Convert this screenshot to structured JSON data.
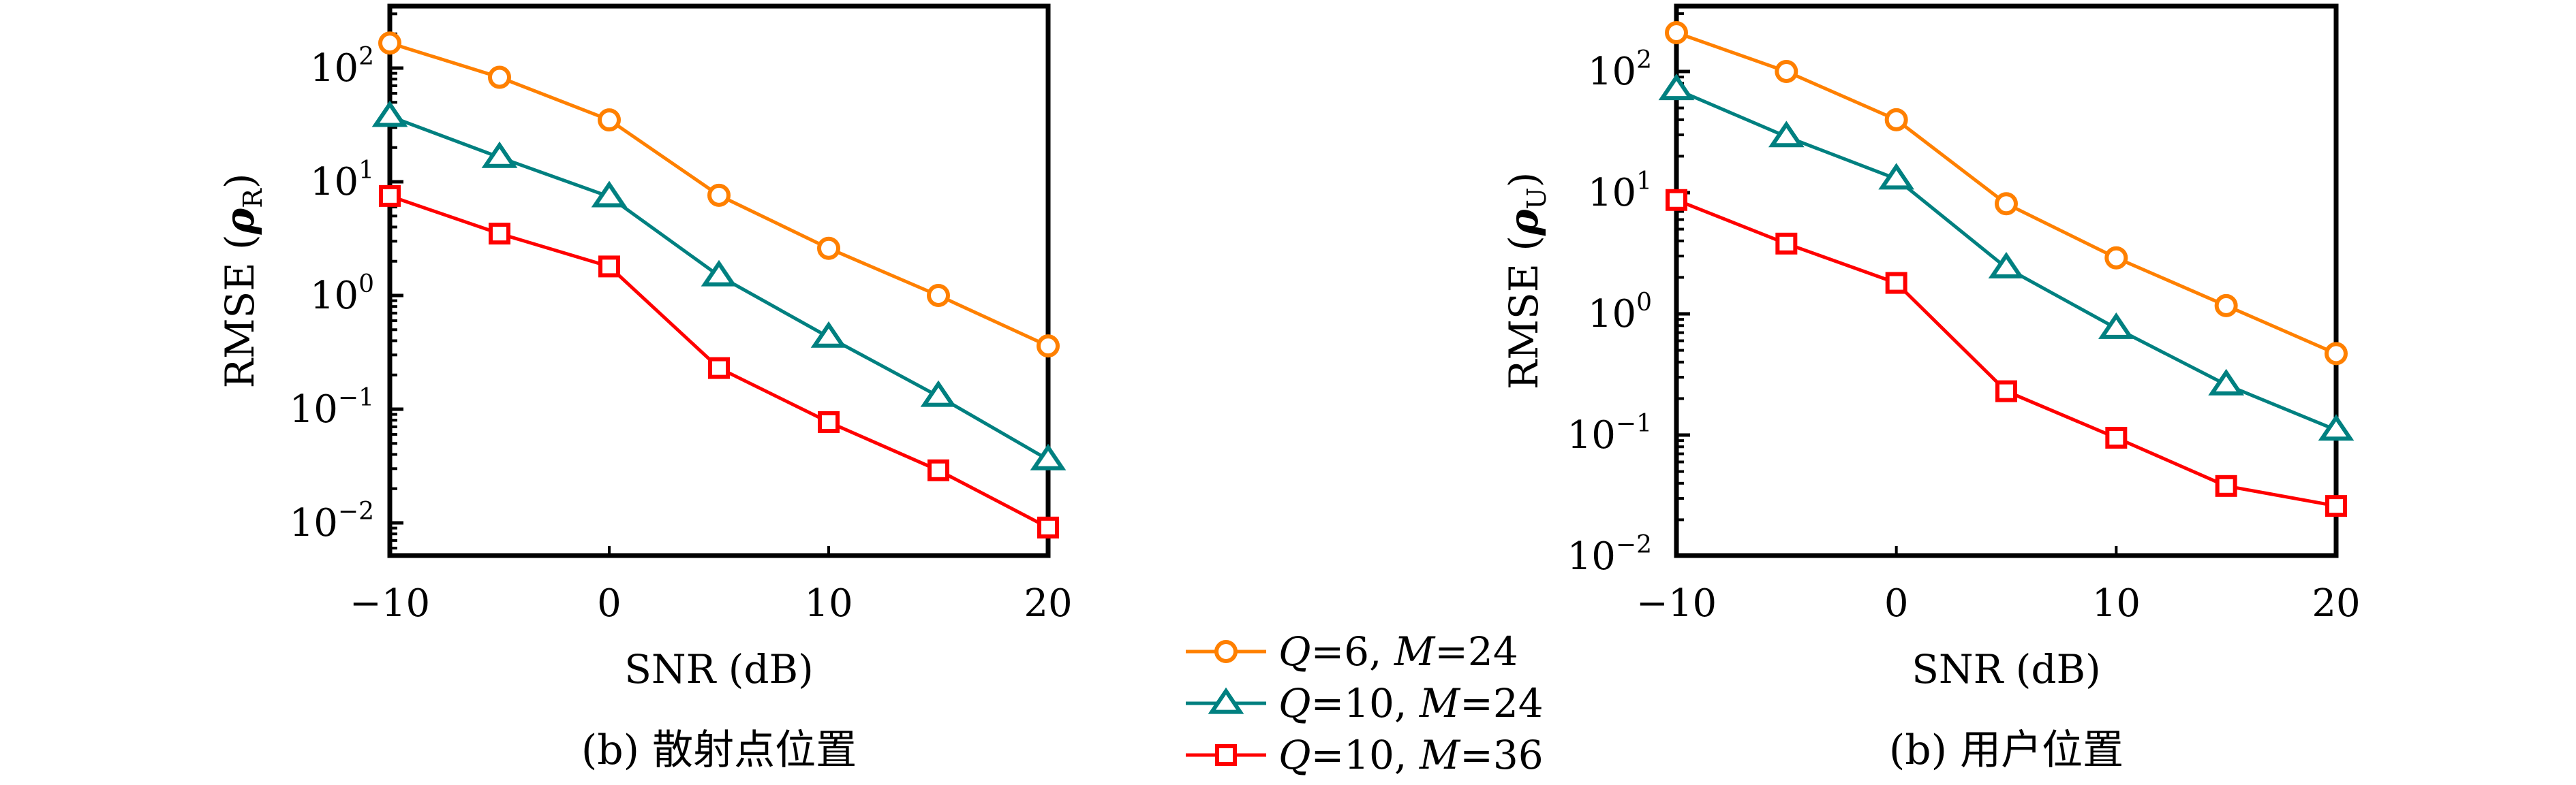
{
  "chart_data": [
    {
      "type": "line",
      "panel": "left",
      "title": "",
      "caption": "(b) 散射点位置",
      "xlabel": "SNR (dB)",
      "ylabel_main": "RMSE (",
      "ylabel_symbol": "ρ",
      "ylabel_subscript": "R",
      "ylabel_close": ")",
      "yscale": "log",
      "xlim": [
        -10,
        20
      ],
      "ylim": [
        0.0051,
        351
      ],
      "grid": false,
      "x": [
        -10,
        -5,
        0,
        5,
        10,
        15,
        20
      ],
      "xticks": [
        {
          "value": -10,
          "label": "−10"
        },
        {
          "value": 0,
          "label": "0"
        },
        {
          "value": 10,
          "label": "10"
        },
        {
          "value": 20,
          "label": "20"
        }
      ],
      "yticks": [
        {
          "value": 100,
          "base": "10",
          "exp": "2"
        },
        {
          "value": 10,
          "base": "10",
          "exp": "1"
        },
        {
          "value": 1,
          "base": "10",
          "exp": "0"
        },
        {
          "value": 0.1,
          "base": "10",
          "exp": "−1"
        },
        {
          "value": 0.01,
          "base": "10",
          "exp": "−2"
        }
      ],
      "series": [
        {
          "name": "Q=6, M=24",
          "marker": "circle",
          "color": "#ff8000",
          "values": [
            166,
            83,
            35,
            7.6,
            2.6,
            1.0,
            0.36
          ]
        },
        {
          "name": "Q=10, M=24",
          "marker": "triangle",
          "color": "#008080",
          "values": [
            37.6,
            16.4,
            7.4,
            1.49,
            0.43,
            0.13,
            0.036
          ]
        },
        {
          "name": "Q=10, M=36",
          "marker": "square",
          "color": "#ff0000",
          "values": [
            7.5,
            3.5,
            1.8,
            0.23,
            0.077,
            0.029,
            0.0091
          ]
        }
      ]
    },
    {
      "type": "line",
      "panel": "right",
      "title": "",
      "caption": "(b) 用户位置",
      "xlabel": "SNR (dB)",
      "ylabel_main": "RMSE (",
      "ylabel_symbol": "ρ",
      "ylabel_subscript": "U",
      "ylabel_close": ")",
      "yscale": "log",
      "xlim": [
        -10,
        20
      ],
      "ylim": [
        0.0099,
        380
      ],
      "grid": false,
      "x": [
        -10,
        -5,
        0,
        5,
        10,
        15,
        20
      ],
      "xticks": [
        {
          "value": -10,
          "label": "−10"
        },
        {
          "value": 0,
          "label": "0"
        },
        {
          "value": 10,
          "label": "10"
        },
        {
          "value": 20,
          "label": "20"
        }
      ],
      "yticks": [
        {
          "value": 100,
          "base": "10",
          "exp": "2"
        },
        {
          "value": 10,
          "base": "10",
          "exp": "1"
        },
        {
          "value": 1,
          "base": "10",
          "exp": "0"
        },
        {
          "value": 0.1,
          "base": "10",
          "exp": "−1"
        },
        {
          "value": 0.01,
          "base": "10",
          "exp": "−2"
        }
      ],
      "series": [
        {
          "name": "Q=6, M=24",
          "marker": "circle",
          "color": "#ff8000",
          "values": [
            209,
            100,
            40,
            8.1,
            2.9,
            1.17,
            0.47
          ]
        },
        {
          "name": "Q=10, M=24",
          "marker": "triangle",
          "color": "#008080",
          "values": [
            71,
            29,
            13,
            2.4,
            0.76,
            0.26,
            0.11
          ]
        },
        {
          "name": "Q=10, M=36",
          "marker": "square",
          "color": "#ff0000",
          "values": [
            8.7,
            3.8,
            1.8,
            0.23,
            0.095,
            0.038,
            0.026
          ]
        }
      ]
    }
  ],
  "legend": {
    "placement": "bottom-center",
    "entries": [
      {
        "marker": "circle",
        "color": "#ff8000",
        "q_var": "Q",
        "q_val": "=6, ",
        "m_var": "M",
        "m_val": "=24"
      },
      {
        "marker": "triangle",
        "color": "#008080",
        "q_var": "Q",
        "q_val": "=10, ",
        "m_var": "M",
        "m_val": "=24"
      },
      {
        "marker": "square",
        "color": "#ff0000",
        "q_var": "Q",
        "q_val": "=10, ",
        "m_var": "M",
        "m_val": "=36"
      }
    ]
  }
}
